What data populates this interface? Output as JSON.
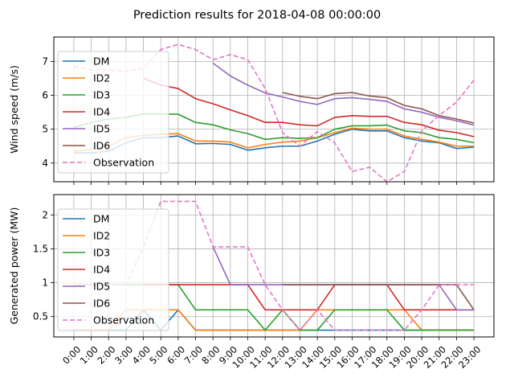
{
  "title": "Prediction results for 2018-04-08 00:00:00",
  "colors": {
    "DM": "#1f77b4",
    "ID2": "#ff7f0e",
    "ID3": "#2ca02c",
    "ID4": "#d62728",
    "ID5": "#9467bd",
    "ID6": "#8c564b",
    "Observation": "#e377c2"
  },
  "chart_data": [
    {
      "type": "line",
      "title": "Prediction results for 2018-04-08 00:00:00",
      "xlabel": "",
      "ylabel": "Wind speed (m/s)",
      "ylim": [
        3.45,
        7.72
      ],
      "yticks": [
        4,
        5,
        6,
        7
      ],
      "grid": true,
      "legend": "upper-left",
      "x": [
        "0:00",
        "1:00",
        "2:00",
        "3:00",
        "4:00",
        "5:00",
        "6:00",
        "7:00",
        "8:00",
        "9:00",
        "10:00",
        "11:00",
        "12:00",
        "13:00",
        "14:00",
        "15:00",
        "16:00",
        "17:00",
        "18:00",
        "19:00",
        "20:00",
        "21:00",
        "22:00",
        "23:00"
      ],
      "series": [
        {
          "name": "DM",
          "style": "solid",
          "values": [
            4.3,
            4.3,
            4.35,
            4.6,
            4.75,
            4.75,
            4.8,
            4.57,
            4.58,
            4.55,
            4.38,
            4.45,
            4.5,
            4.5,
            4.65,
            4.85,
            5.0,
            4.95,
            4.95,
            4.75,
            4.65,
            4.6,
            4.43,
            4.47
          ]
        },
        {
          "name": "ID2",
          "style": "solid",
          "values": [
            4.35,
            4.4,
            4.5,
            4.75,
            4.82,
            4.85,
            4.87,
            4.65,
            4.65,
            4.62,
            4.45,
            4.55,
            4.62,
            4.65,
            4.75,
            4.9,
            5.03,
            5.0,
            5.0,
            4.8,
            4.7,
            4.62,
            4.5,
            4.5
          ]
        },
        {
          "name": "ID3",
          "style": "solid",
          "values": [
            5.05,
            5.2,
            5.3,
            5.35,
            5.45,
            5.45,
            5.44,
            5.2,
            5.13,
            4.98,
            4.87,
            4.7,
            4.75,
            4.73,
            4.75,
            5.0,
            5.1,
            5.1,
            5.12,
            4.95,
            4.9,
            4.75,
            4.7,
            4.6
          ]
        },
        {
          "name": "ID4",
          "style": "solid",
          "values": [
            null,
            null,
            null,
            null,
            6.5,
            6.3,
            6.2,
            5.9,
            5.75,
            5.57,
            5.4,
            5.2,
            5.2,
            5.13,
            5.1,
            5.35,
            5.4,
            5.38,
            5.38,
            5.2,
            5.13,
            4.97,
            4.9,
            4.78
          ]
        },
        {
          "name": "ID5",
          "style": "solid",
          "values": [
            null,
            null,
            null,
            null,
            null,
            null,
            null,
            null,
            6.95,
            6.57,
            6.3,
            6.07,
            5.95,
            5.82,
            5.73,
            5.9,
            5.93,
            5.88,
            5.82,
            5.6,
            5.5,
            5.35,
            5.25,
            5.12
          ]
        },
        {
          "name": "ID6",
          "style": "solid",
          "values": [
            null,
            null,
            null,
            null,
            null,
            null,
            null,
            null,
            null,
            null,
            null,
            null,
            6.08,
            5.97,
            5.9,
            6.05,
            6.08,
            5.98,
            5.93,
            5.7,
            5.6,
            5.4,
            5.3,
            5.18
          ]
        },
        {
          "name": "Observation",
          "style": "dashed",
          "values": [
            6.85,
            6.75,
            6.75,
            6.7,
            6.8,
            7.35,
            7.5,
            7.35,
            7.05,
            7.2,
            7.05,
            6.2,
            4.9,
            4.5,
            4.93,
            4.6,
            3.75,
            3.88,
            3.45,
            3.75,
            4.95,
            5.4,
            5.8,
            6.45
          ]
        }
      ]
    },
    {
      "type": "line",
      "xlabel": "",
      "ylabel": "Generated power (MW)",
      "ylim": [
        0.2,
        2.3
      ],
      "yticks": [
        0.5,
        1.0,
        1.5,
        2.0
      ],
      "grid": true,
      "legend": "upper-left",
      "x": [
        "0:00",
        "1:00",
        "2:00",
        "3:00",
        "4:00",
        "5:00",
        "6:00",
        "7:00",
        "8:00",
        "9:00",
        "10:00",
        "11:00",
        "12:00",
        "13:00",
        "14:00",
        "15:00",
        "16:00",
        "17:00",
        "18:00",
        "19:00",
        "20:00",
        "21:00",
        "22:00",
        "23:00"
      ],
      "series": [
        {
          "name": "DM",
          "style": "solid",
          "values": [
            0.3,
            0.3,
            0.3,
            0.3,
            0.6,
            0.3,
            0.6,
            0.3,
            0.3,
            0.3,
            0.3,
            0.3,
            0.3,
            0.3,
            0.3,
            0.3,
            0.3,
            0.3,
            0.3,
            0.3,
            0.3,
            0.3,
            0.3,
            0.3
          ]
        },
        {
          "name": "ID2",
          "style": "solid",
          "values": [
            0.3,
            0.3,
            0.3,
            0.6,
            0.6,
            0.6,
            0.6,
            0.3,
            0.3,
            0.3,
            0.3,
            0.3,
            0.3,
            0.3,
            0.6,
            0.6,
            0.6,
            0.6,
            0.6,
            0.6,
            0.3,
            0.3,
            0.3,
            0.3
          ]
        },
        {
          "name": "ID3",
          "style": "solid",
          "values": [
            0.97,
            0.97,
            0.97,
            0.97,
            0.97,
            0.97,
            0.97,
            0.6,
            0.6,
            0.6,
            0.6,
            0.3,
            0.6,
            0.3,
            0.3,
            0.6,
            0.6,
            0.6,
            0.6,
            0.3,
            0.3,
            0.3,
            0.3,
            0.3
          ]
        },
        {
          "name": "ID4",
          "style": "solid",
          "values": [
            null,
            null,
            null,
            null,
            0.97,
            0.97,
            0.97,
            0.97,
            0.97,
            0.97,
            0.97,
            0.6,
            0.6,
            0.6,
            0.6,
            0.97,
            0.97,
            0.97,
            0.97,
            0.6,
            0.6,
            0.6,
            0.6,
            0.6
          ]
        },
        {
          "name": "ID5",
          "style": "solid",
          "values": [
            null,
            null,
            null,
            null,
            null,
            null,
            null,
            null,
            1.53,
            0.97,
            0.97,
            0.97,
            0.97,
            0.97,
            0.97,
            0.97,
            0.97,
            0.97,
            0.97,
            0.97,
            0.97,
            0.97,
            0.6,
            0.6
          ]
        },
        {
          "name": "ID6",
          "style": "solid",
          "values": [
            null,
            null,
            null,
            null,
            null,
            null,
            null,
            null,
            null,
            null,
            null,
            null,
            0.97,
            0.97,
            0.97,
            0.97,
            0.97,
            0.97,
            0.97,
            0.97,
            0.97,
            0.97,
            0.97,
            0.6
          ]
        },
        {
          "name": "Observation",
          "style": "dashed",
          "values": [
            0.97,
            0.97,
            0.97,
            0.97,
            1.53,
            2.2,
            2.2,
            2.2,
            1.53,
            1.53,
            1.53,
            0.97,
            0.6,
            0.3,
            0.6,
            0.3,
            0.3,
            0.3,
            0.3,
            0.3,
            0.6,
            0.97,
            0.97,
            0.97
          ]
        }
      ]
    }
  ]
}
